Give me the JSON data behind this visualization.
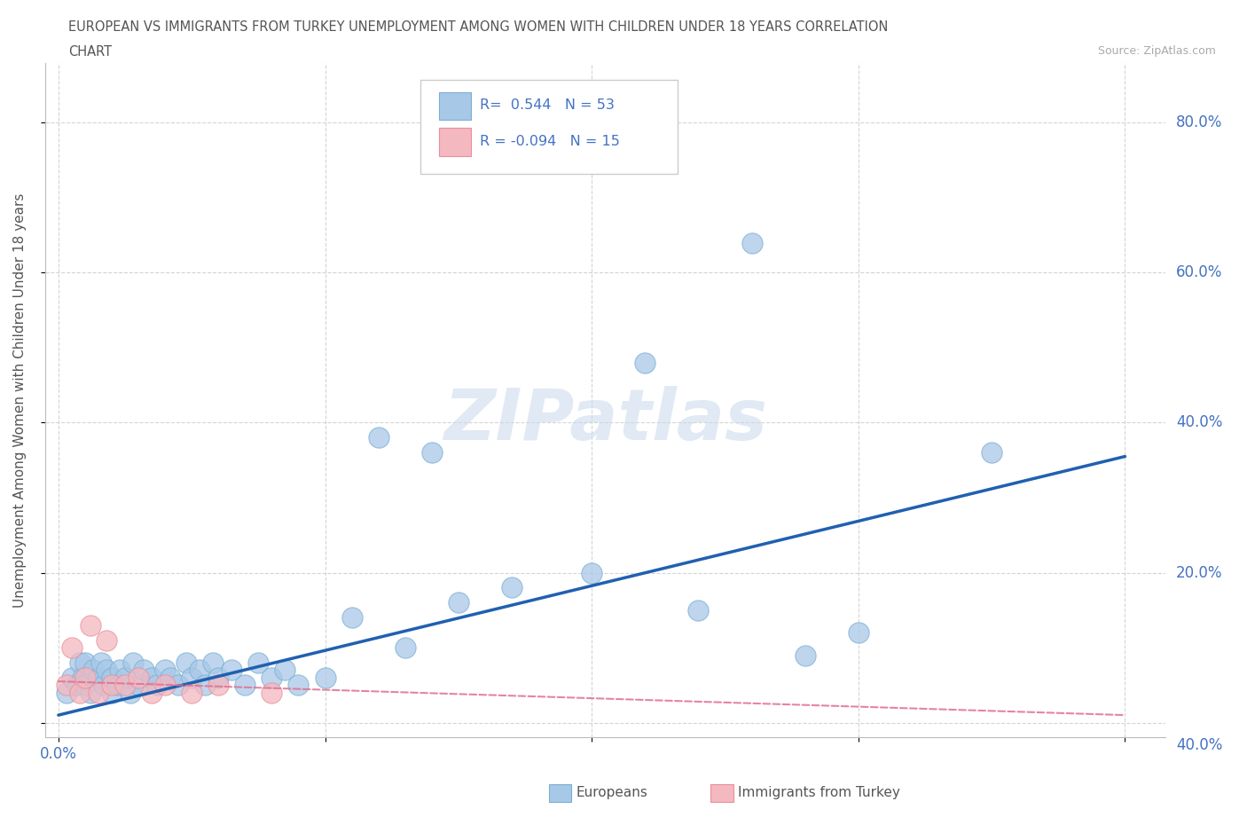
{
  "title_line1": "EUROPEAN VS IMMIGRANTS FROM TURKEY UNEMPLOYMENT AMONG WOMEN WITH CHILDREN UNDER 18 YEARS CORRELATION",
  "title_line2": "CHART",
  "source": "Source: ZipAtlas.com",
  "ylabel": "Unemployment Among Women with Children Under 18 years",
  "watermark": "ZIPatlas",
  "R_european": 0.544,
  "N_european": 53,
  "R_turkey": -0.094,
  "N_turkey": 15,
  "xlim": [
    -0.005,
    0.415
  ],
  "ylim": [
    -0.02,
    0.88
  ],
  "color_european": "#a8c8e8",
  "color_european_edge": "#7ab0d4",
  "color_turkey": "#f4b8c0",
  "color_turkey_edge": "#e8909a",
  "color_line_european": "#2060b0",
  "color_line_turkey": "#e07090",
  "background_color": "#ffffff",
  "grid_color": "#d0d0d0",
  "eu_x": [
    0.003,
    0.005,
    0.007,
    0.008,
    0.009,
    0.01,
    0.01,
    0.012,
    0.013,
    0.015,
    0.016,
    0.017,
    0.018,
    0.02,
    0.02,
    0.022,
    0.023,
    0.025,
    0.027,
    0.028,
    0.03,
    0.032,
    0.035,
    0.037,
    0.04,
    0.042,
    0.045,
    0.048,
    0.05,
    0.053,
    0.055,
    0.058,
    0.06,
    0.065,
    0.07,
    0.075,
    0.08,
    0.085,
    0.09,
    0.1,
    0.11,
    0.12,
    0.13,
    0.14,
    0.15,
    0.17,
    0.2,
    0.22,
    0.24,
    0.26,
    0.28,
    0.3,
    0.35
  ],
  "eu_y": [
    0.04,
    0.06,
    0.05,
    0.08,
    0.06,
    0.05,
    0.08,
    0.04,
    0.07,
    0.06,
    0.08,
    0.05,
    0.07,
    0.04,
    0.06,
    0.05,
    0.07,
    0.06,
    0.04,
    0.08,
    0.05,
    0.07,
    0.06,
    0.05,
    0.07,
    0.06,
    0.05,
    0.08,
    0.06,
    0.07,
    0.05,
    0.08,
    0.06,
    0.07,
    0.05,
    0.08,
    0.06,
    0.07,
    0.05,
    0.06,
    0.14,
    0.38,
    0.1,
    0.36,
    0.16,
    0.18,
    0.2,
    0.48,
    0.15,
    0.64,
    0.09,
    0.12,
    0.36
  ],
  "tr_x": [
    0.003,
    0.005,
    0.008,
    0.01,
    0.012,
    0.015,
    0.018,
    0.02,
    0.025,
    0.03,
    0.035,
    0.04,
    0.05,
    0.06,
    0.08
  ],
  "tr_y": [
    0.05,
    0.1,
    0.04,
    0.06,
    0.13,
    0.04,
    0.11,
    0.05,
    0.05,
    0.06,
    0.04,
    0.05,
    0.04,
    0.05,
    0.04
  ],
  "eu_line_x0": 0.0,
  "eu_line_x1": 0.4,
  "eu_line_y0": 0.01,
  "eu_line_y1": 0.355,
  "tr_line_x0": 0.0,
  "tr_line_x1": 0.4,
  "tr_line_y0": 0.055,
  "tr_line_y1": 0.01
}
